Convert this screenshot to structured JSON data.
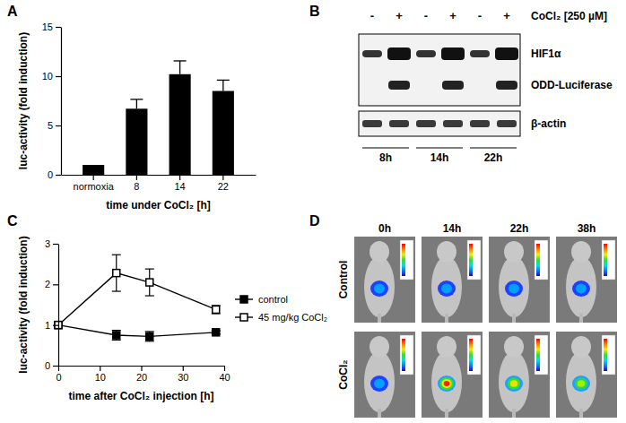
{
  "chart_data": [
    {
      "type": "bar",
      "title": "A",
      "x_label": "time under CoCl₂ [h]",
      "y_label": "luc-activity (fold induction)",
      "categories": [
        "normoxia",
        "8",
        "14",
        "22"
      ],
      "values": [
        1,
        6.7,
        10.2,
        8.5
      ],
      "errors": [
        0,
        0.95,
        1.35,
        1.1
      ],
      "color": "#000000",
      "ylim": [
        0,
        15
      ],
      "yticks": [
        0,
        5,
        10,
        15
      ]
    },
    {
      "type": "line",
      "title": "C",
      "x_label": "time after CoCl₂ injection [h]",
      "y_label": "luc-activity (fold induction)",
      "x": [
        0,
        14,
        22,
        38
      ],
      "xlim": [
        0,
        40
      ],
      "xticks": [
        0,
        10,
        20,
        30,
        40
      ],
      "ylim": [
        0,
        3
      ],
      "yticks": [
        0,
        1,
        2,
        3
      ],
      "legend": "right",
      "series": [
        {
          "name": "control",
          "color": "#000000",
          "marker": "square",
          "values": [
            1,
            0.75,
            0.72,
            0.82
          ],
          "errors": [
            0,
            0.12,
            0.12,
            0.04
          ]
        },
        {
          "name": "45 mg/kg CoCl₂",
          "color": "#000000",
          "marker": "open-square",
          "values": [
            1,
            2.28,
            2.05,
            1.38
          ],
          "errors": [
            0,
            0.45,
            0.33,
            0.1
          ]
        }
      ]
    }
  ],
  "blot": {
    "title": "B",
    "treatment": "CoCl₂ [250 µM]",
    "lanes": [
      "-",
      "+",
      "-",
      "+",
      "-",
      "+"
    ],
    "bands": [
      "HIF1α",
      "ODD-Luciferase"
    ],
    "loading_control": "β-actin",
    "timepoints": [
      "8h",
      "14h",
      "22h"
    ]
  },
  "imaging": {
    "title": "D",
    "columns": [
      "0h",
      "14h",
      "22h",
      "38h"
    ],
    "rows": [
      "Control",
      "CoCl₂"
    ]
  }
}
